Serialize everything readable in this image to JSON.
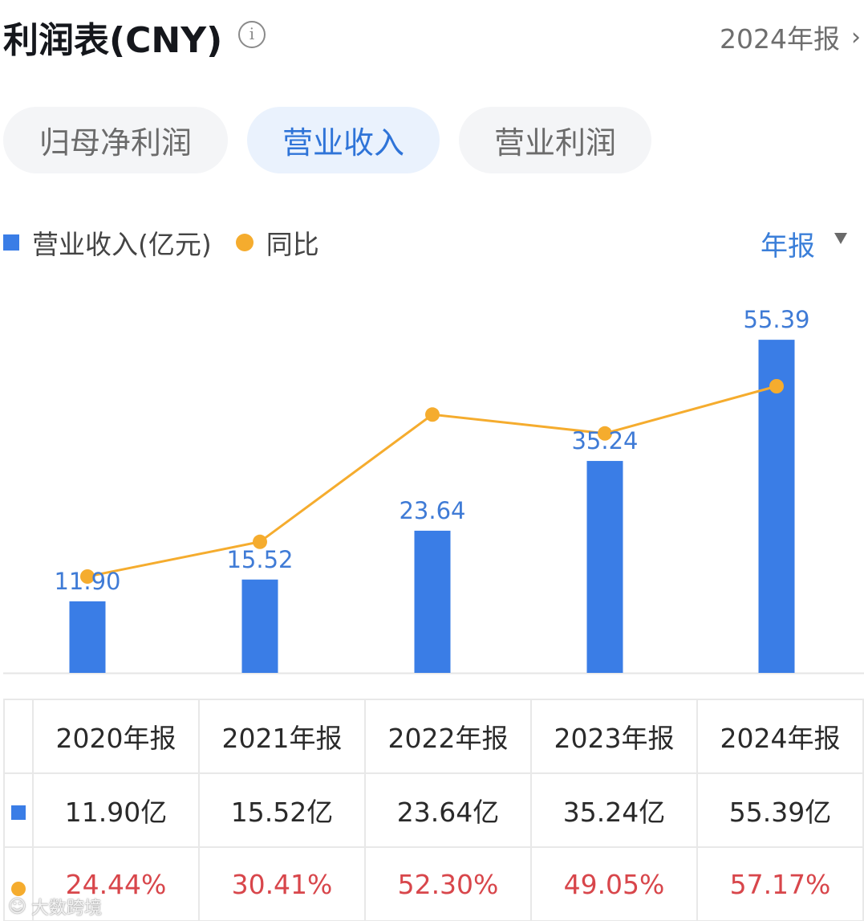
{
  "header": {
    "title": "利润表(CNY)",
    "info_icon": "info-icon",
    "period_link": "2024年报",
    "chevron_icon": "chevron-right-icon"
  },
  "tabs": [
    {
      "label": "归母净利润",
      "active": false
    },
    {
      "label": "营业收入",
      "active": true
    },
    {
      "label": "营业利润",
      "active": false
    }
  ],
  "legend": {
    "bar_series": "营业收入(亿元)",
    "line_series": "同比",
    "period_selector": "年报",
    "caret_icon": "caret-down-icon"
  },
  "colors": {
    "bar": "#3a7de6",
    "line": "#f5ac2e",
    "label": "#3f7bd6",
    "yoy_text": "#d8464b",
    "active_tab_bg": "#eaf2fd",
    "active_tab_text": "#2f74d8"
  },
  "chart_data": {
    "type": "bar",
    "title": "利润表(CNY) - 营业收入",
    "categories": [
      "2020年报",
      "2021年报",
      "2022年报",
      "2023年报",
      "2024年报"
    ],
    "series": [
      {
        "name": "营业收入(亿元)",
        "type": "bar",
        "values": [
          11.9,
          15.52,
          23.64,
          35.24,
          55.39
        ],
        "labels": [
          "11.90",
          "15.52",
          "23.64",
          "35.24",
          "55.39"
        ]
      },
      {
        "name": "同比",
        "type": "line",
        "values": [
          24.44,
          30.41,
          52.3,
          49.05,
          57.17
        ],
        "unit": "%"
      }
    ],
    "xlabel": "",
    "ylabel": "",
    "grid": false,
    "legend_position": "top-left"
  },
  "table": {
    "headers": [
      "2020年报",
      "2021年报",
      "2022年报",
      "2023年报",
      "2024年报"
    ],
    "revenue_row": [
      "11.90亿",
      "15.52亿",
      "23.64亿",
      "35.24亿",
      "55.39亿"
    ],
    "yoy_row": [
      "24.44%",
      "30.41%",
      "52.30%",
      "49.05%",
      "57.17%"
    ]
  },
  "watermark": "大数跨境"
}
